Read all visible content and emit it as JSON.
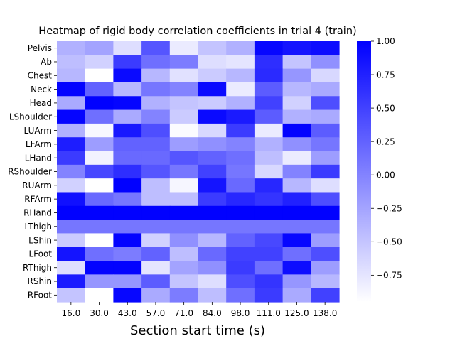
{
  "chart_data": {
    "type": "heatmap",
    "title": "Heatmap of rigid body correlation coefficients in trial 4 (train)",
    "xlabel": "Section start time (s)",
    "ylabel": "",
    "x_categories": [
      "16.0",
      "30.0",
      "43.0",
      "57.0",
      "71.0",
      "84.0",
      "98.0",
      "111.0",
      "125.0",
      "138.0"
    ],
    "y_categories": [
      "Pelvis",
      "Ab",
      "Chest",
      "Neck",
      "Head",
      "LShoulder",
      "LUArm",
      "LFArm",
      "LHand",
      "RShoulder",
      "RUArm",
      "RFArm",
      "RHand",
      "LThigh",
      "LShin",
      "LFoot",
      "RThigh",
      "RShin",
      "RFoot"
    ],
    "values": [
      [
        -0.35,
        -0.25,
        -0.7,
        0.35,
        -0.8,
        -0.5,
        -0.35,
        0.95,
        0.85,
        0.9
      ],
      [
        -0.45,
        -0.6,
        0.55,
        0.15,
        0.05,
        -0.7,
        -0.75,
        0.65,
        -0.5,
        -0.1
      ],
      [
        -0.4,
        -0.98,
        0.92,
        -0.4,
        -0.72,
        -0.55,
        -0.4,
        0.68,
        -0.15,
        -0.65
      ],
      [
        0.98,
        0.25,
        -0.4,
        0.1,
        0.0,
        0.92,
        -0.8,
        0.3,
        -0.4,
        -0.3
      ],
      [
        -0.3,
        0.99,
        0.96,
        -0.35,
        -0.5,
        -0.55,
        -0.35,
        0.5,
        -0.6,
        0.4
      ],
      [
        0.96,
        0.15,
        -0.3,
        0.0,
        -0.55,
        0.92,
        0.8,
        0.3,
        -0.35,
        -0.3
      ],
      [
        -0.35,
        -0.9,
        0.82,
        0.4,
        -0.92,
        -0.65,
        0.55,
        -0.8,
        0.98,
        0.3
      ],
      [
        0.78,
        -0.2,
        0.25,
        0.25,
        -0.2,
        -0.1,
        0.0,
        -0.35,
        -0.1,
        0.1
      ],
      [
        0.55,
        -0.85,
        0.2,
        0.2,
        0.35,
        0.25,
        0.15,
        -0.45,
        -0.8,
        -0.2
      ],
      [
        0.0,
        0.45,
        0.65,
        0.35,
        0.1,
        0.5,
        0.1,
        -0.65,
        0.0,
        0.55
      ],
      [
        -0.6,
        -1.0,
        0.99,
        -0.45,
        -0.88,
        0.85,
        0.2,
        0.7,
        -0.4,
        -0.7
      ],
      [
        0.88,
        0.2,
        0.1,
        -0.45,
        -0.45,
        0.55,
        0.7,
        0.6,
        0.75,
        0.4
      ],
      [
        0.99,
        0.99,
        0.99,
        0.99,
        0.99,
        0.99,
        0.99,
        0.99,
        0.99,
        0.99
      ],
      [
        0.1,
        0.1,
        0.1,
        0.1,
        0.1,
        0.1,
        0.1,
        0.1,
        0.1,
        0.1
      ],
      [
        -0.55,
        -1.0,
        0.97,
        -0.6,
        -0.1,
        -0.4,
        0.25,
        0.45,
        0.95,
        -0.2
      ],
      [
        0.85,
        0.15,
        0.05,
        0.25,
        -0.45,
        0.2,
        0.5,
        0.5,
        0.15,
        0.4
      ],
      [
        -0.7,
        0.98,
        0.98,
        -0.75,
        -0.25,
        -0.1,
        0.55,
        0.15,
        0.9,
        -0.2
      ],
      [
        0.8,
        -0.15,
        -0.15,
        0.3,
        -0.5,
        -0.7,
        0.4,
        0.6,
        -0.15,
        -0.4
      ],
      [
        -0.5,
        -1.0,
        0.95,
        -0.3,
        0.05,
        -0.45,
        0.15,
        0.55,
        -0.3,
        0.5
      ]
    ],
    "vmin": -0.95,
    "vmax": 1.0,
    "colorbar_ticks": [
      1.0,
      0.75,
      0.5,
      0.25,
      0.0,
      -0.25,
      -0.5,
      -0.75
    ],
    "colorbar_tick_labels": [
      "1.00",
      "0.75",
      "0.50",
      "0.25",
      "0.00",
      "−0.25",
      "−0.50",
      "−0.75"
    ],
    "colormap": {
      "low": "#ffffff",
      "high": "#0000ff"
    },
    "grid": false,
    "legend": "colorbar-right"
  }
}
